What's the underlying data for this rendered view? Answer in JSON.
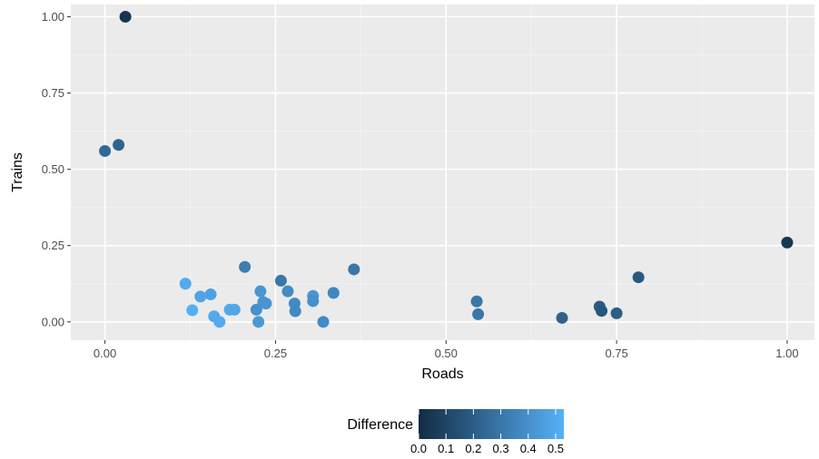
{
  "chart_data": {
    "type": "scatter",
    "xlabel": "Roads",
    "ylabel": "Trains",
    "xlim": [
      -0.05,
      1.04
    ],
    "ylim": [
      -0.06,
      1.04
    ],
    "x_ticks": [
      {
        "value": 0.0,
        "label": "0.00"
      },
      {
        "value": 0.25,
        "label": "0.25"
      },
      {
        "value": 0.5,
        "label": "0.50"
      },
      {
        "value": 0.75,
        "label": "0.75"
      },
      {
        "value": 1.0,
        "label": "1.00"
      }
    ],
    "y_ticks": [
      {
        "value": 0.0,
        "label": "0.00"
      },
      {
        "value": 0.25,
        "label": "0.25"
      },
      {
        "value": 0.5,
        "label": "0.50"
      },
      {
        "value": 0.75,
        "label": "0.75"
      },
      {
        "value": 1.0,
        "label": "1.00"
      }
    ],
    "grid": true,
    "legend": {
      "title": "Difference",
      "position": "bottom",
      "type": "colorbar",
      "range": [
        0.0,
        0.53
      ],
      "low_color": "#132B43",
      "high_color": "#56B1F7",
      "ticks": [
        {
          "value": 0.0,
          "label": "0.0"
        },
        {
          "value": 0.1,
          "label": "0.1"
        },
        {
          "value": 0.2,
          "label": "0.2"
        },
        {
          "value": 0.3,
          "label": "0.3"
        },
        {
          "value": 0.4,
          "label": "0.4"
        },
        {
          "value": 0.5,
          "label": "0.5"
        }
      ]
    },
    "points": [
      {
        "x": 0.03,
        "y": 1.0,
        "diff": 0.03
      },
      {
        "x": 0.0,
        "y": 0.56,
        "diff": 0.24
      },
      {
        "x": 0.02,
        "y": 0.58,
        "diff": 0.22
      },
      {
        "x": 0.118,
        "y": 0.125,
        "diff": 0.5
      },
      {
        "x": 0.128,
        "y": 0.038,
        "diff": 0.52
      },
      {
        "x": 0.14,
        "y": 0.083,
        "diff": 0.48
      },
      {
        "x": 0.155,
        "y": 0.09,
        "diff": 0.47
      },
      {
        "x": 0.16,
        "y": 0.018,
        "diff": 0.5
      },
      {
        "x": 0.168,
        "y": 0.0,
        "diff": 0.5
      },
      {
        "x": 0.183,
        "y": 0.04,
        "diff": 0.5
      },
      {
        "x": 0.19,
        "y": 0.04,
        "diff": 0.49
      },
      {
        "x": 0.205,
        "y": 0.18,
        "diff": 0.33
      },
      {
        "x": 0.222,
        "y": 0.04,
        "diff": 0.4
      },
      {
        "x": 0.225,
        "y": 0.0,
        "diff": 0.43
      },
      {
        "x": 0.228,
        "y": 0.1,
        "diff": 0.42
      },
      {
        "x": 0.232,
        "y": 0.065,
        "diff": 0.42
      },
      {
        "x": 0.236,
        "y": 0.06,
        "diff": 0.42
      },
      {
        "x": 0.258,
        "y": 0.135,
        "diff": 0.3
      },
      {
        "x": 0.268,
        "y": 0.1,
        "diff": 0.38
      },
      {
        "x": 0.278,
        "y": 0.06,
        "diff": 0.38
      },
      {
        "x": 0.279,
        "y": 0.035,
        "diff": 0.37
      },
      {
        "x": 0.305,
        "y": 0.085,
        "diff": 0.42
      },
      {
        "x": 0.305,
        "y": 0.068,
        "diff": 0.4
      },
      {
        "x": 0.32,
        "y": 0.0,
        "diff": 0.38
      },
      {
        "x": 0.335,
        "y": 0.095,
        "diff": 0.36
      },
      {
        "x": 0.365,
        "y": 0.172,
        "diff": 0.3
      },
      {
        "x": 0.545,
        "y": 0.067,
        "diff": 0.3
      },
      {
        "x": 0.547,
        "y": 0.025,
        "diff": 0.3
      },
      {
        "x": 0.67,
        "y": 0.013,
        "diff": 0.22
      },
      {
        "x": 0.725,
        "y": 0.05,
        "diff": 0.19
      },
      {
        "x": 0.728,
        "y": 0.036,
        "diff": 0.17
      },
      {
        "x": 0.75,
        "y": 0.028,
        "diff": 0.2
      },
      {
        "x": 0.782,
        "y": 0.146,
        "diff": 0.18
      },
      {
        "x": 1.0,
        "y": 0.26,
        "diff": 0.05
      }
    ]
  }
}
